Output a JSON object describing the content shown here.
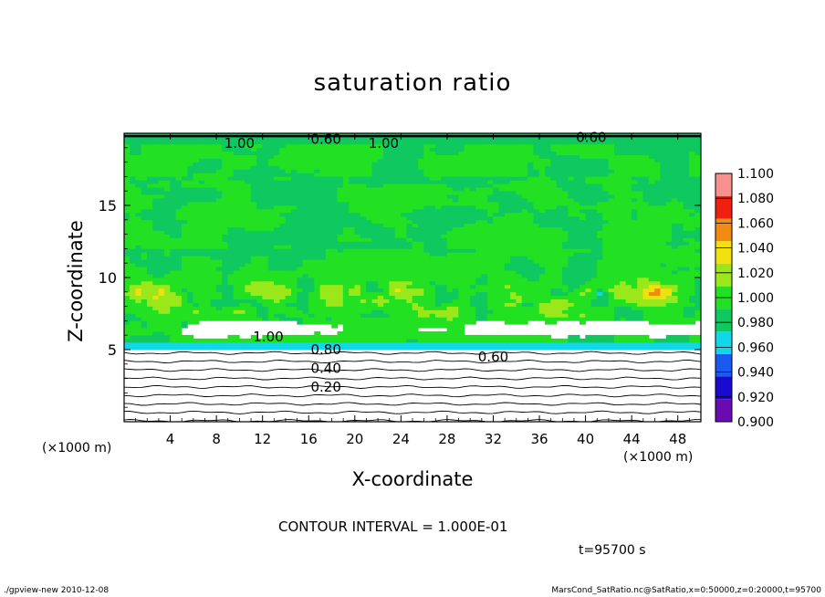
{
  "chart_data": {
    "type": "heatmap",
    "title": "saturation ratio",
    "xlabel": "X-coordinate",
    "ylabel": "Z-coordinate",
    "x_unit_left": "(×1000 m)",
    "x_unit_right": "(×1000 m)",
    "xlim": [
      0,
      50
    ],
    "ylim": [
      0,
      20
    ],
    "x_ticks": [
      4,
      8,
      12,
      16,
      20,
      24,
      28,
      32,
      36,
      40,
      44,
      48
    ],
    "y_ticks": [
      5,
      10,
      15
    ],
    "colorbar": {
      "levels": [
        0.9,
        0.92,
        0.94,
        0.96,
        0.98,
        1.0,
        1.02,
        1.04,
        1.06,
        1.08,
        1.1
      ],
      "labels": [
        "0.900",
        "0.920",
        "0.940",
        "0.960",
        "0.980",
        "1.000",
        "1.020",
        "1.040",
        "1.060",
        "1.080",
        "1.100"
      ],
      "colors": [
        "#6a0ab0",
        "#1a0ad0",
        "#1a5af0",
        "#10d8e8",
        "#10c860",
        "#22e022",
        "#9ae81a",
        "#f0e010",
        "#f08a10",
        "#f02010",
        "#f89090"
      ]
    },
    "contour_labels": [
      {
        "text": "1.00",
        "x": 10,
        "z": 19.3
      },
      {
        "text": "0.60",
        "x": 17.5,
        "z": 19.6
      },
      {
        "text": "1.00",
        "x": 22.5,
        "z": 19.3
      },
      {
        "text": "0.60",
        "x": 40.5,
        "z": 19.7
      },
      {
        "text": "1.00",
        "x": 12.5,
        "z": 5.9
      },
      {
        "text": "0.80",
        "x": 17.5,
        "z": 5.0
      },
      {
        "text": "0.60",
        "x": 32,
        "z": 4.5
      },
      {
        "text": "0.40",
        "x": 17.5,
        "z": 3.7
      },
      {
        "text": "0.20",
        "x": 17.5,
        "z": 2.4
      }
    ],
    "contour_interval_text": "CONTOUR INTERVAL = 1.000E-01",
    "time_text": "t=95700  s"
  },
  "footer": {
    "left": "./gpview-new   2010-12-08",
    "right": "MarsCond_SatRatio.nc@SatRatio,x=0:50000,z=0:20000,t=95700"
  }
}
